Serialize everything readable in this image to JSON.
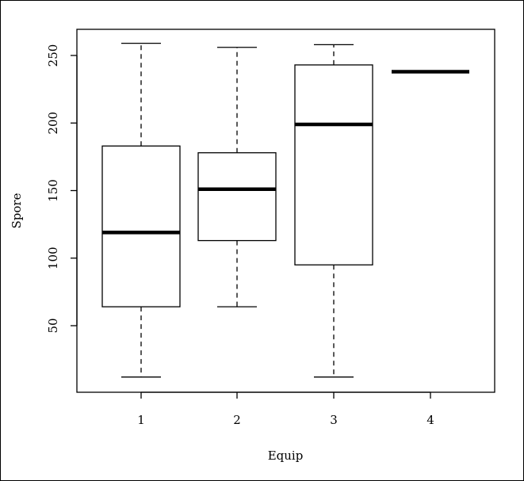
{
  "chart_data": {
    "type": "boxplot",
    "title": "",
    "xlabel": "Equip",
    "ylabel": "Spore",
    "ylim": [
      0,
      265
    ],
    "yticks": [
      50,
      100,
      150,
      200,
      250
    ],
    "categories": [
      "1",
      "2",
      "3",
      "4"
    ],
    "boxes": [
      {
        "category": "1",
        "whisker_low": 12,
        "q1": 64,
        "median": 119,
        "q3": 183,
        "whisker_high": 259
      },
      {
        "category": "2",
        "whisker_low": 64,
        "q1": 113,
        "median": 151,
        "q3": 178,
        "whisker_high": 256
      },
      {
        "category": "3",
        "whisker_low": 12,
        "q1": 95,
        "median": 199,
        "q3": 243,
        "whisker_high": 258
      },
      {
        "category": "4",
        "whisker_low": 238,
        "q1": 238,
        "median": 238,
        "q3": 238,
        "whisker_high": 238
      }
    ],
    "grid": false,
    "legend": "none"
  }
}
